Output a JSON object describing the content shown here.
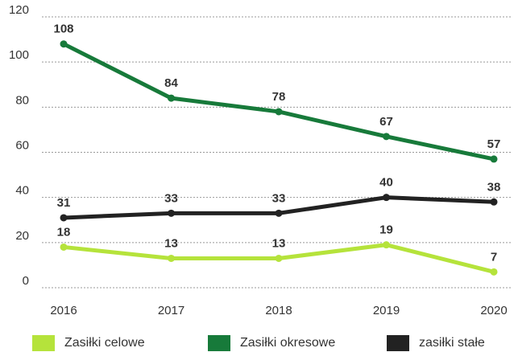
{
  "chart_data": {
    "type": "line",
    "title": "",
    "xlabel": "",
    "ylabel": "",
    "categories": [
      "2016",
      "2017",
      "2018",
      "2019",
      "2020"
    ],
    "ylim": [
      0,
      120
    ],
    "yticks": [
      "0",
      "20",
      "40",
      "60",
      "80",
      "100",
      "120"
    ],
    "grid": true,
    "legend_position": "bottom",
    "series": [
      {
        "name": "Zasiłki celowe",
        "color": "#b5e33b",
        "values": [
          18,
          13,
          13,
          19,
          7
        ]
      },
      {
        "name": "Zasiłki okresowe",
        "color": "#177a3a",
        "values": [
          108,
          84,
          78,
          67,
          57
        ]
      },
      {
        "name": "zasiłki stałe",
        "color": "#222222",
        "values": [
          31,
          33,
          33,
          40,
          38
        ]
      }
    ]
  }
}
